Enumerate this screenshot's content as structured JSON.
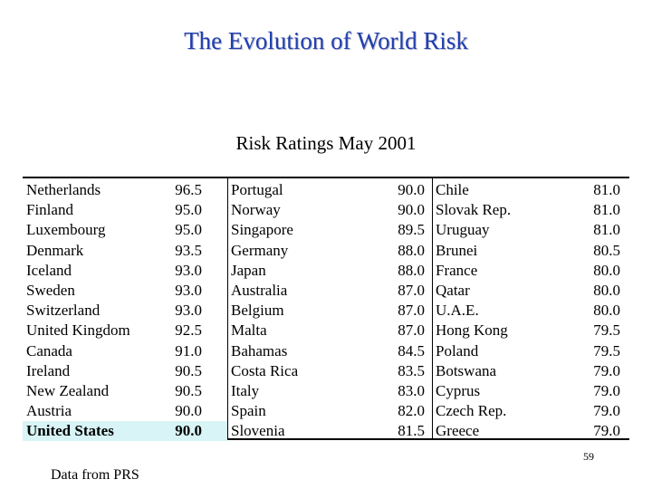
{
  "slide": {
    "title": "The Evolution of World Risk",
    "table_title": "Risk Ratings May 2001",
    "page_number": "59",
    "source": "Data from PRS"
  },
  "columns": [
    {
      "rows": [
        {
          "country": "Netherlands",
          "rating": "96.5"
        },
        {
          "country": "Finland",
          "rating": "95.0"
        },
        {
          "country": "Luxembourg",
          "rating": "95.0"
        },
        {
          "country": "Denmark",
          "rating": "93.5"
        },
        {
          "country": "Iceland",
          "rating": "93.0"
        },
        {
          "country": "Sweden",
          "rating": "93.0"
        },
        {
          "country": "Switzerland",
          "rating": "93.0"
        },
        {
          "country": "United Kingdom",
          "rating": "92.5"
        },
        {
          "country": "Canada",
          "rating": "91.0"
        },
        {
          "country": "Ireland",
          "rating": "90.5"
        },
        {
          "country": "New Zealand",
          "rating": "90.5"
        },
        {
          "country": "Austria",
          "rating": "90.0"
        },
        {
          "country": "United States",
          "rating": "90.0",
          "highlighted": true
        }
      ]
    },
    {
      "rows": [
        {
          "country": "Portugal",
          "rating": "90.0"
        },
        {
          "country": "Norway",
          "rating": "90.0"
        },
        {
          "country": "Singapore",
          "rating": "89.5"
        },
        {
          "country": "Germany",
          "rating": "88.0"
        },
        {
          "country": "Japan",
          "rating": "88.0"
        },
        {
          "country": "Australia",
          "rating": "87.0"
        },
        {
          "country": "Belgium",
          "rating": "87.0"
        },
        {
          "country": "Malta",
          "rating": "87.0"
        },
        {
          "country": "Bahamas",
          "rating": "84.5"
        },
        {
          "country": "Costa Rica",
          "rating": "83.5"
        },
        {
          "country": "Italy",
          "rating": "83.0"
        },
        {
          "country": "Spain",
          "rating": "82.0"
        },
        {
          "country": "Slovenia",
          "rating": "81.5"
        }
      ]
    },
    {
      "rows": [
        {
          "country": "Chile",
          "rating": "81.0"
        },
        {
          "country": "Slovak Rep.",
          "rating": "81.0"
        },
        {
          "country": "Uruguay",
          "rating": "81.0"
        },
        {
          "country": "Brunei",
          "rating": "80.5"
        },
        {
          "country": "France",
          "rating": "80.0"
        },
        {
          "country": "Qatar",
          "rating": "80.0"
        },
        {
          "country": "U.A.E.",
          "rating": "80.0"
        },
        {
          "country": "Hong Kong",
          "rating": "79.5"
        },
        {
          "country": "Poland",
          "rating": "79.5"
        },
        {
          "country": "Botswana",
          "rating": "79.0"
        },
        {
          "country": "Cyprus",
          "rating": "79.0"
        },
        {
          "country": "Czech Rep.",
          "rating": "79.0"
        },
        {
          "country": "Greece",
          "rating": "79.0"
        }
      ]
    }
  ],
  "colors": {
    "title": "#1f3fb0",
    "highlight": "#d8f4f6"
  }
}
